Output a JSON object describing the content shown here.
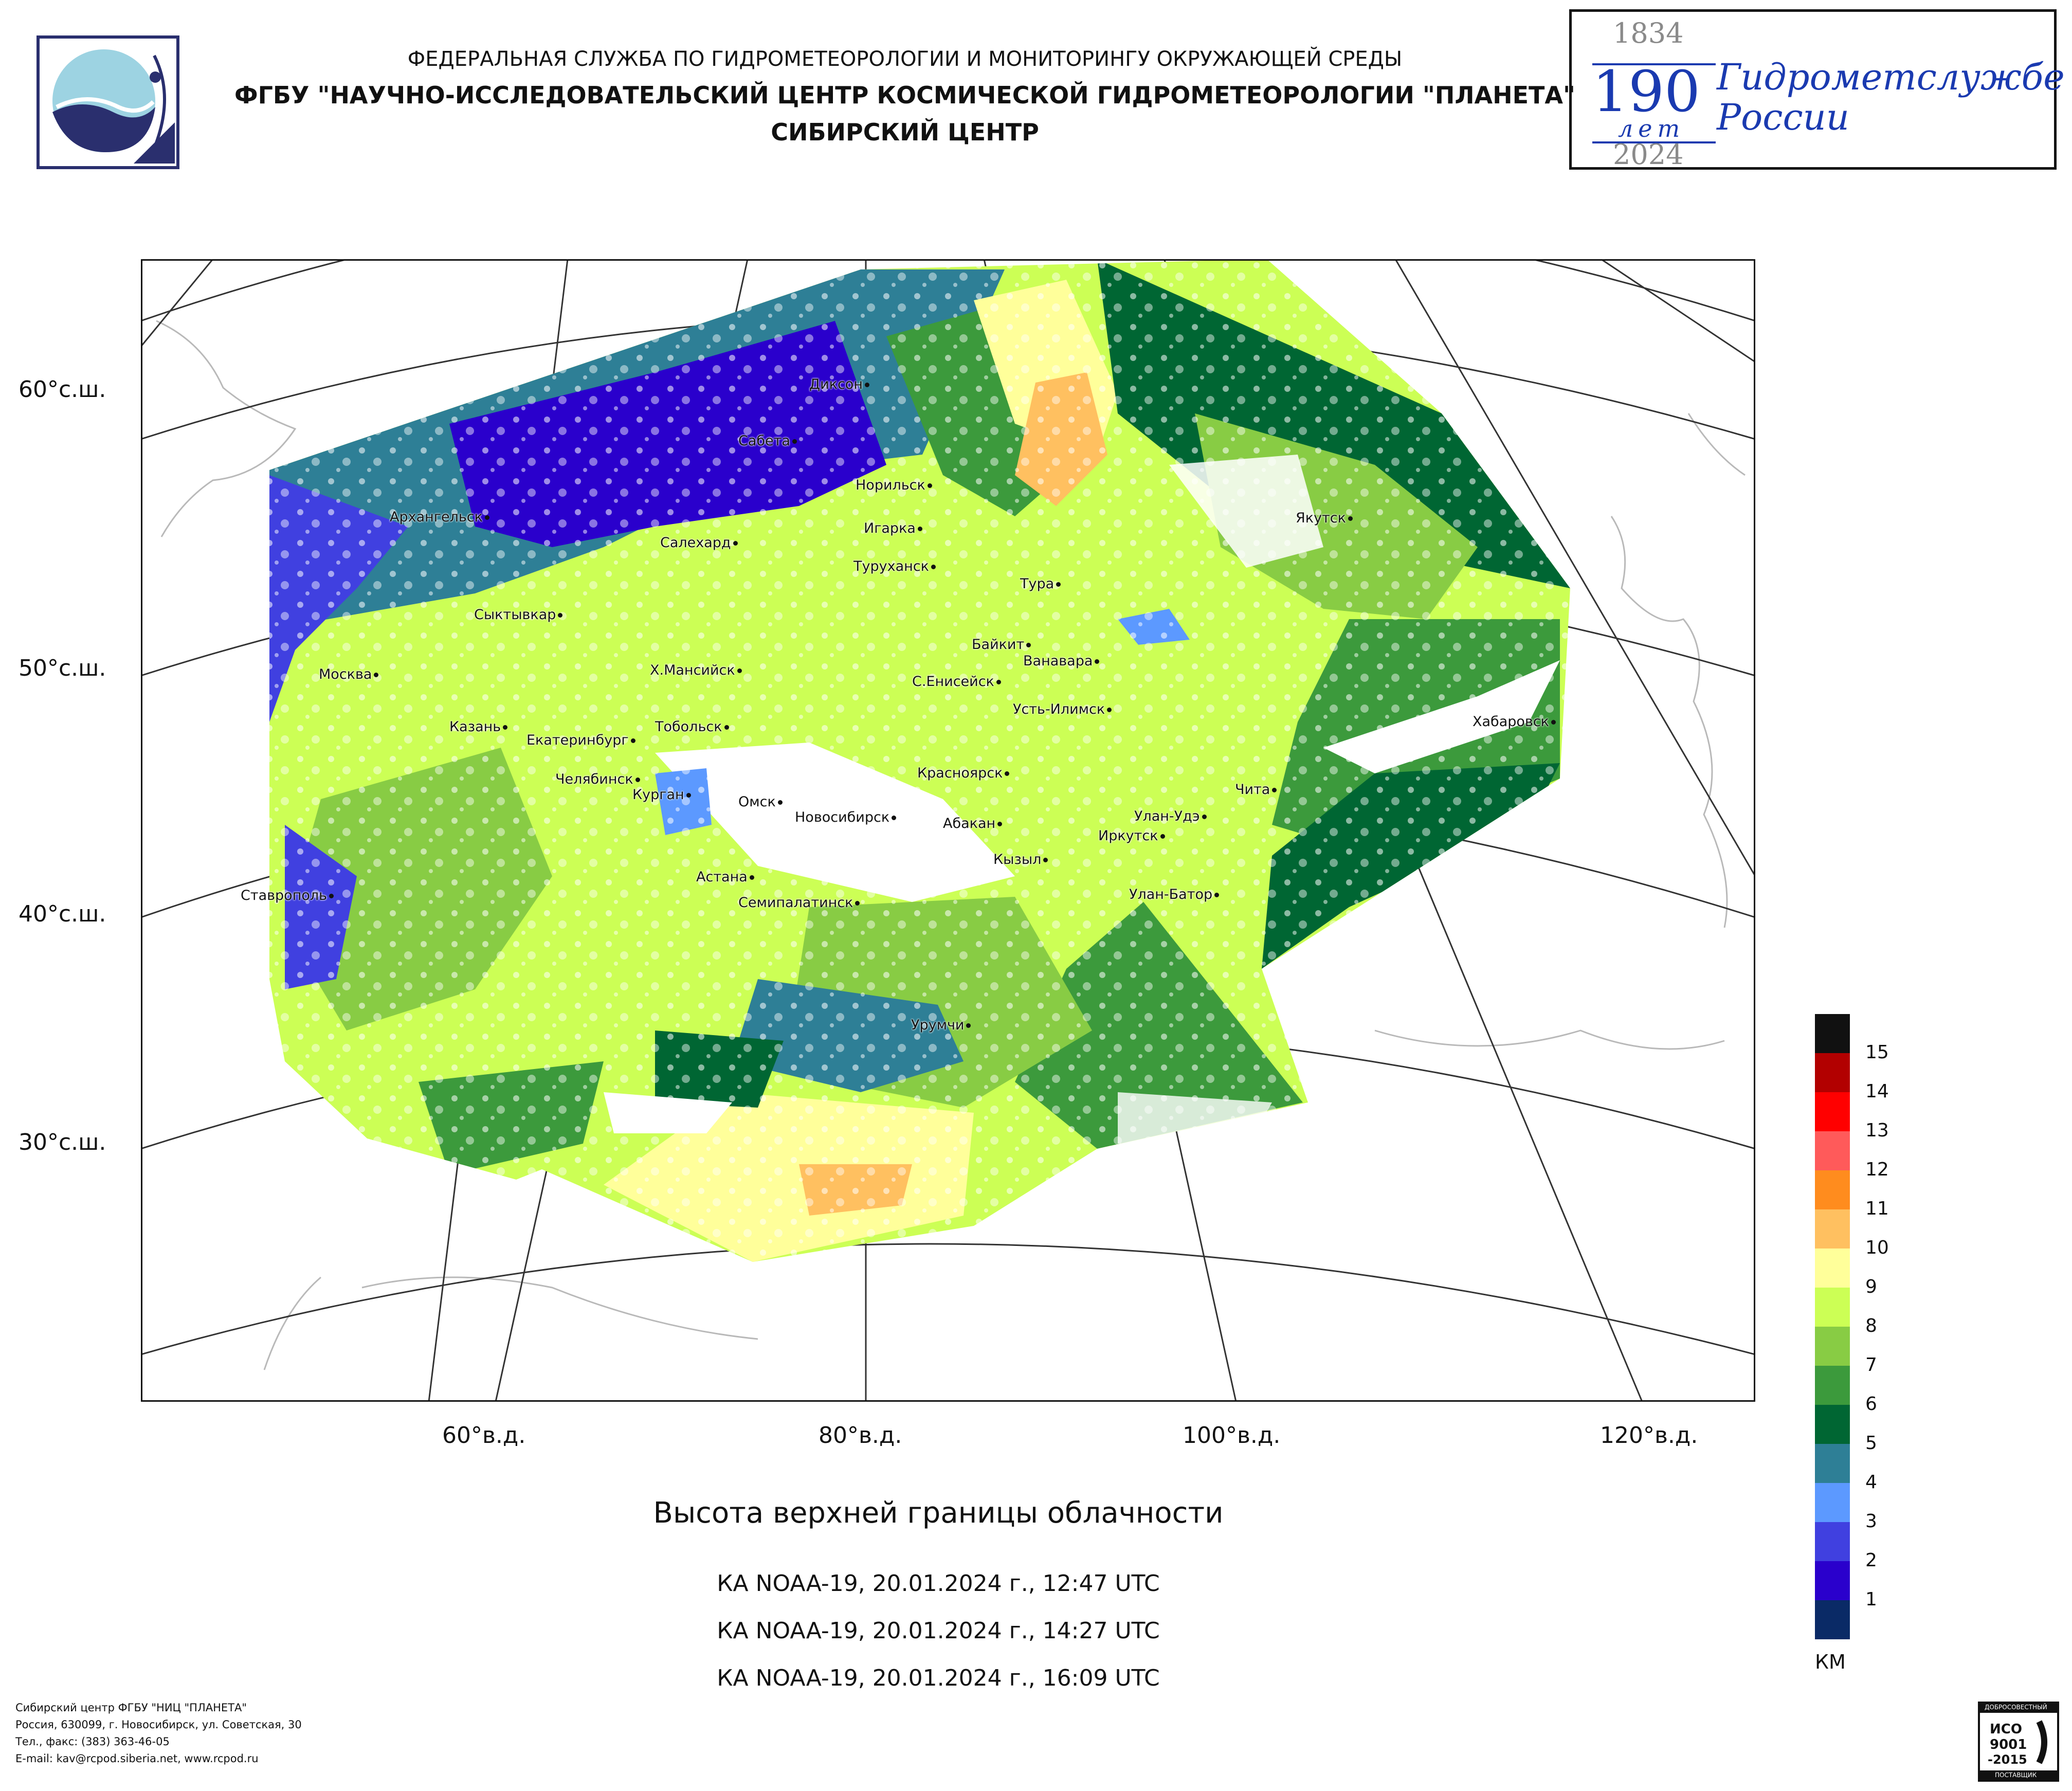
{
  "header": {
    "line1": "ФЕДЕРАЛЬНАЯ СЛУЖБА ПО ГИДРОМЕТЕОРОЛОГИИ И МОНИТОРИНГУ ОКРУЖАЮЩЕЙ СРЕДЫ",
    "line2": "ФГБУ \"НАУЧНО-ИССЛЕДОВАТЕЛЬСКИЙ ЦЕНТР КОСМИЧЕСКОЙ ГИДРОМЕТЕОРОЛОГИИ \"ПЛАНЕТА\"",
    "line3": "СИБИРСКИЙ ЦЕНТР"
  },
  "anniversary": {
    "year_start": "1834",
    "number": "190",
    "years_word": "лет",
    "year_end": "2024",
    "text_line1": "Гидрометслужбе",
    "text_line2": "России"
  },
  "map": {
    "lat_labels": [
      "60°с.ш.",
      "50°с.ш.",
      "40°с.ш.",
      "30°с.ш."
    ],
    "lon_labels": [
      "60°в.д.",
      "80°в.д.",
      "100°в.д.",
      "120°в.д."
    ],
    "cities": [
      "Диксон",
      "Сабета",
      "Норильск",
      "Архангельск",
      "Салехард",
      "Игарка",
      "Туруханск",
      "Якутск",
      "Тура",
      "Сыктывкар",
      "Байкит",
      "Ванавара",
      "Москва",
      "Х.Мансийск",
      "С.Енисейск",
      "Усть-Илимск",
      "Казань",
      "Екатеринбург",
      "Тобольск",
      "Хабаровск",
      "Челябинск",
      "Курган",
      "Красноярск",
      "Чита",
      "Омск",
      "Новосибирск",
      "Абакан",
      "Улан-Удэ",
      "Иркутск",
      "Кызыл",
      "Астана",
      "Улан-Батор",
      "Ставрополь",
      "Семипалатинск",
      "Урумчи"
    ]
  },
  "legend": {
    "unit": "КМ",
    "levels": [
      {
        "label": "15",
        "color": "#111111"
      },
      {
        "label": "14",
        "color": "#b20000"
      },
      {
        "label": "13",
        "color": "#ff0000"
      },
      {
        "label": "12",
        "color": "#ff5a5a"
      },
      {
        "label": "11",
        "color": "#ff8c1e"
      },
      {
        "label": "10",
        "color": "#ffc060"
      },
      {
        "label": "9",
        "color": "#ffff9a"
      },
      {
        "label": "8",
        "color": "#ccff55"
      },
      {
        "label": "7",
        "color": "#88cc44"
      },
      {
        "label": "6",
        "color": "#3c9a3c"
      },
      {
        "label": "5",
        "color": "#006633"
      },
      {
        "label": "4",
        "color": "#2e7f96"
      },
      {
        "label": "3",
        "color": "#5c99ff"
      },
      {
        "label": "2",
        "color": "#4040e0"
      },
      {
        "label": "1",
        "color": "#2a00cc"
      },
      {
        "label": "",
        "color": "#0a2a66"
      }
    ]
  },
  "title": "Высота верхней границы облачности",
  "passes": [
    "КА NOAA-19, 20.01.2024 г., 12:47 UTC",
    "КА NOAA-19, 20.01.2024 г., 14:27 UTC",
    "КА NOAA-19, 20.01.2024 г., 16:09 UTC"
  ],
  "footer": {
    "line1": "Сибирский центр ФГБУ \"НИЦ \"ПЛАНЕТА\"",
    "line2": "Россия, 630099, г. Новосибирск, ул. Советская, 30",
    "line3": "Тел., факс: (383) 363-46-05",
    "line4": "E-mail: kav@rcpod.siberia.net, www.rcpod.ru"
  },
  "cert": {
    "top": "ДОБРОСОВЕСТНЫЙ",
    "iso": "ИСО",
    "num": "9001",
    "year": "-2015",
    "bottom": "ПОСТАВЩИК"
  }
}
